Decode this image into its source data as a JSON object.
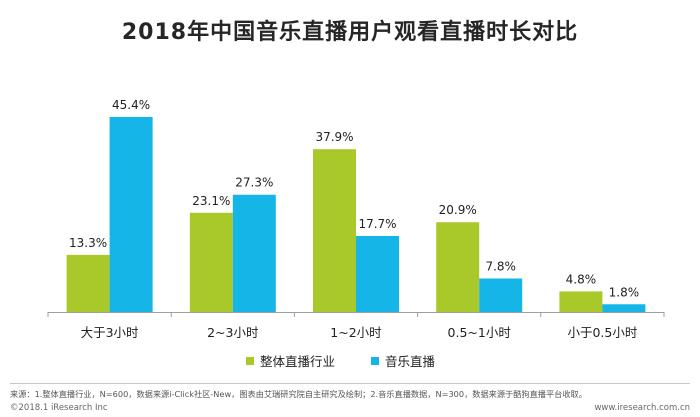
{
  "title": "2018年中国音乐直播用户观看直播时长对比",
  "colors": {
    "series1": "#a9c92a",
    "series2": "#16b5e8",
    "axis": "#9e9e9e"
  },
  "chart_data": {
    "type": "bar",
    "title": "2018年中国音乐直播用户观看直播时长对比",
    "categories": [
      "大于3小时",
      "2~3小时",
      "1~2小时",
      "0.5~1小时",
      "小于0.5小时"
    ],
    "series": [
      {
        "name": "整体直播行业",
        "values": [
          13.3,
          23.1,
          37.9,
          20.9,
          4.8
        ],
        "labels": [
          "13.3%",
          "23.1%",
          "37.9%",
          "20.9%",
          "4.8%"
        ]
      },
      {
        "name": "音乐直播",
        "values": [
          45.4,
          27.3,
          17.7,
          7.8,
          1.8
        ],
        "labels": [
          "45.4%",
          "27.3%",
          "17.7%",
          "7.8%",
          "1.8%"
        ]
      }
    ],
    "ylim": [
      0,
      45.4
    ],
    "grid": false,
    "legend": "bottom"
  },
  "legend": {
    "series1": "整体直播行业",
    "series2": "音乐直播"
  },
  "footer": {
    "note": "来源：1.整体直播行业，N=600，数据来源i-Click社区-New，图表由艾瑞研究院自主研究及绘制；2.音乐直播数据，N=300，数据来源于酷狗直播平台收取。",
    "copyright": "©2018.1 iResearch Inc",
    "website": "www.iresearch.com.cn"
  }
}
